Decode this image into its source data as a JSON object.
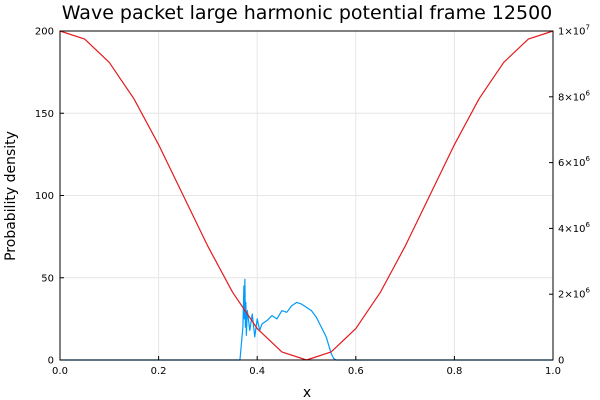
{
  "chart_data": {
    "type": "line",
    "title": "Wave packet large harmonic potential frame 12500",
    "xlabel": "x",
    "ylabel": "Probability density",
    "ylabel_right": "",
    "xlim": [
      0.0,
      1.0
    ],
    "ylim": [
      0,
      200
    ],
    "ylim_right": [
      0,
      10000000
    ],
    "grid": true,
    "legend": "none",
    "x_ticks": [
      "0.0",
      "0.2",
      "0.4",
      "0.6",
      "0.8",
      "1.0"
    ],
    "y_ticks": [
      "0",
      "50",
      "100",
      "150",
      "200"
    ],
    "y_ticks_right": [
      {
        "value": 0,
        "mant": "0",
        "exp": ""
      },
      {
        "value": 2000000,
        "mant": "2×10",
        "exp": "6"
      },
      {
        "value": 4000000,
        "mant": "4×10",
        "exp": "6"
      },
      {
        "value": 6000000,
        "mant": "6×10",
        "exp": "6"
      },
      {
        "value": 8000000,
        "mant": "8×10",
        "exp": "6"
      },
      {
        "value": 10000000,
        "mant": "1×10",
        "exp": "7"
      }
    ],
    "series": [
      {
        "axis": "left",
        "color": "#009AFA",
        "x": [
          0.0,
          0.365,
          0.371,
          0.373,
          0.374,
          0.375,
          0.376,
          0.377,
          0.378,
          0.38,
          0.385,
          0.39,
          0.395,
          0.4,
          0.405,
          0.41,
          0.42,
          0.43,
          0.44,
          0.45,
          0.46,
          0.47,
          0.48,
          0.49,
          0.5,
          0.51,
          0.52,
          0.53,
          0.54,
          0.545,
          0.55,
          0.555,
          0.56,
          1.0
        ],
        "y": [
          0,
          0,
          20,
          45,
          25,
          49,
          20,
          35,
          15,
          30,
          18,
          28,
          14,
          25,
          18,
          22,
          24,
          27,
          25,
          30,
          29,
          33,
          35,
          34,
          32,
          30,
          26,
          20,
          14,
          9,
          4,
          1,
          0,
          0
        ]
      },
      {
        "axis": "right",
        "color": "#E31A1C",
        "x": [
          0.0,
          0.05,
          0.1,
          0.15,
          0.2,
          0.25,
          0.3,
          0.35,
          0.4,
          0.45,
          0.5,
          0.55,
          0.6,
          0.65,
          0.7,
          0.75,
          0.8,
          0.85,
          0.9,
          0.95,
          1.0
        ],
        "y": [
          10000000,
          9755283,
          9045085,
          7938926,
          6545085,
          5000000,
          3454915,
          2061074,
          954915,
          244717,
          0,
          244717,
          954915,
          2061074,
          3454915,
          5000000,
          6545085,
          7938926,
          9045085,
          9755283,
          10000000
        ]
      }
    ]
  }
}
